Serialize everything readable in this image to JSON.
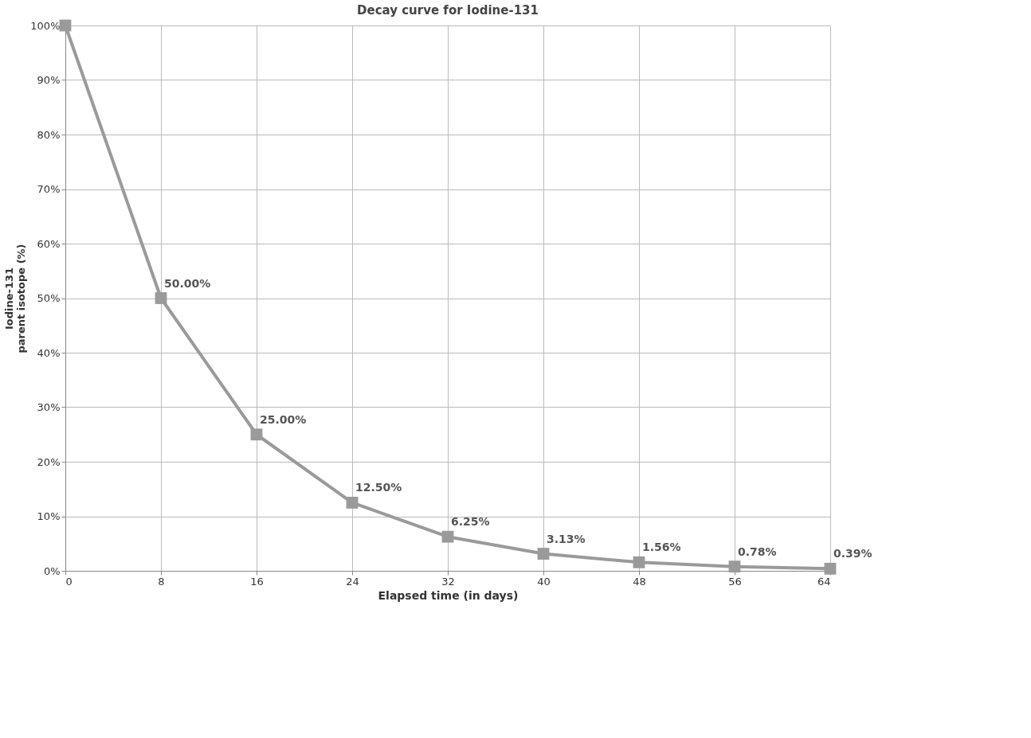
{
  "chart_data": {
    "type": "line",
    "title": "Decay curve for Iodine-131",
    "xlabel": "Elapsed time (in days)",
    "ylabel": "Iodine-131\nparent isotope (%)",
    "x": [
      0,
      8,
      16,
      24,
      32,
      40,
      48,
      56,
      64
    ],
    "series": [
      {
        "color": "#9a9a9a",
        "values": [
          100,
          50,
          25,
          12.5,
          6.25,
          3.13,
          1.56,
          0.78,
          0.39
        ],
        "value_labels": [
          null,
          "50.00%",
          "25.00%",
          "12.50%",
          "6.25%",
          "3.13%",
          "1.56%",
          "0.78%",
          "0.39%"
        ]
      }
    ],
    "xlim": [
      0,
      64
    ],
    "xticks": [
      0,
      8,
      16,
      24,
      32,
      40,
      48,
      56,
      64
    ],
    "ylim": [
      0,
      100
    ],
    "yticks": [
      {
        "value": 0,
        "label": "0%"
      },
      {
        "value": 10,
        "label": "10%"
      },
      {
        "value": 20,
        "label": "20%"
      },
      {
        "value": 30,
        "label": "30%"
      },
      {
        "value": 40,
        "label": "40%"
      },
      {
        "value": 50,
        "label": "50%"
      },
      {
        "value": 60,
        "label": "60%"
      },
      {
        "value": 70,
        "label": "70%"
      },
      {
        "value": 80,
        "label": "80%"
      },
      {
        "value": 90,
        "label": "90%"
      },
      {
        "value": 100,
        "label": "100%"
      }
    ],
    "grid": true,
    "marker": "square",
    "line_style": "solid"
  }
}
